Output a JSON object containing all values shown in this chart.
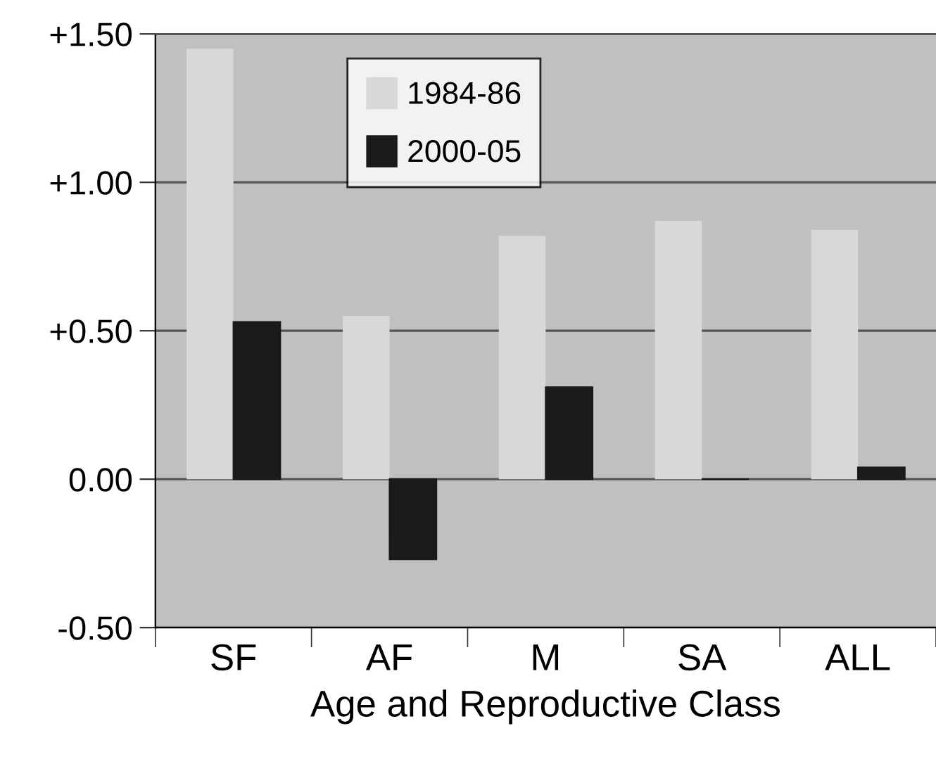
{
  "chart_data": {
    "type": "bar",
    "xlabel": "Age and Reproductive Class",
    "categories": [
      "SF",
      "AF",
      "M",
      "SA",
      "ALL"
    ],
    "series": [
      {
        "name": "1984-86",
        "color": "#d8d8d8",
        "values": [
          1.45,
          0.55,
          0.82,
          0.87,
          0.84
        ]
      },
      {
        "name": "2000-05",
        "color": "#1a1a1a",
        "values": [
          0.53,
          -0.27,
          0.31,
          0.0,
          0.04
        ]
      }
    ],
    "ylim": [
      -0.5,
      1.5
    ],
    "yticks": [
      {
        "value": -0.5,
        "label": "-0.50"
      },
      {
        "value": 0,
        "label": "0.00"
      },
      {
        "value": 0.5,
        "label": "+0.50"
      },
      {
        "value": 1.0,
        "label": "+1.00"
      },
      {
        "value": 1.5,
        "label": "+1.50"
      }
    ],
    "grid": "y",
    "legend": "top left"
  }
}
